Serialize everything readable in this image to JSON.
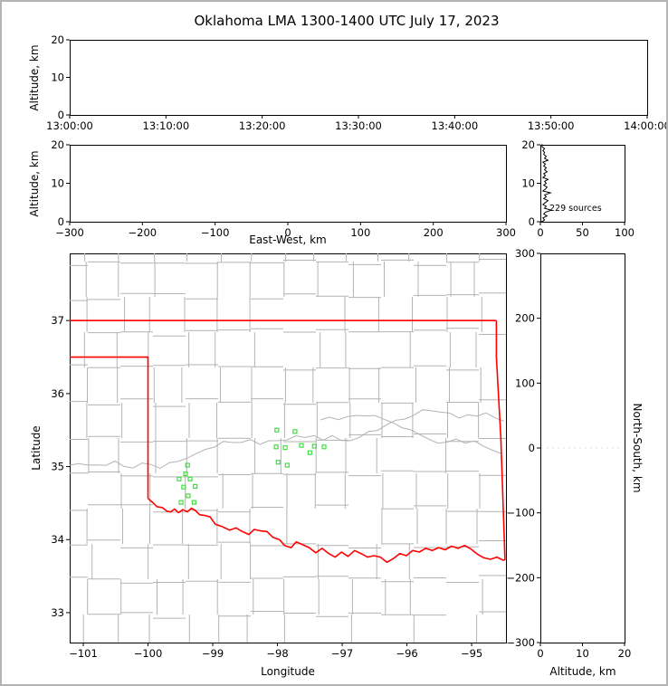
{
  "title": "Oklahoma LMA 1300-1400 UTC July 17, 2023",
  "style": {
    "background": "#ffffff",
    "frame_border": "#b4b4b4",
    "axis_color": "#000000",
    "county_line_color": "#b3b3b3",
    "state_border_color": "#ff0000",
    "source_marker_color": "#3fdf3f",
    "histogram_line_color": "#000000",
    "faint_grid_color": "#dcdcdc"
  },
  "chart_data": [
    {
      "id": "time_height",
      "type": "scatter",
      "xlabel": "",
      "ylabel": "Altitude, km",
      "xlim": [
        0,
        3600
      ],
      "ylim": [
        0,
        20
      ],
      "xtick_values": [
        0,
        600,
        1200,
        1800,
        2400,
        3000,
        3600
      ],
      "xtick_labels": [
        "13:00:00",
        "13:10:00",
        "13:20:00",
        "13:30:00",
        "13:40:00",
        "13:50:00",
        "14:00:00"
      ],
      "ytick_values": [
        0,
        10,
        20
      ],
      "ytick_labels": [
        "0",
        "10",
        "20"
      ],
      "points": []
    },
    {
      "id": "ew_height",
      "type": "scatter",
      "xlabel": "East-West, km",
      "ylabel": "Altitude, km",
      "xlim": [
        -300,
        300
      ],
      "ylim": [
        0,
        20
      ],
      "xtick_values": [
        -300,
        -200,
        -100,
        0,
        100,
        200,
        300
      ],
      "xtick_labels": [
        "−300",
        "−200",
        "−100",
        "0",
        "100",
        "200",
        "300"
      ],
      "ytick_values": [
        0,
        10,
        20
      ],
      "ytick_labels": [
        "0",
        "10",
        "20"
      ],
      "points": []
    },
    {
      "id": "alt_histogram",
      "type": "line",
      "annotation": "229 sources",
      "xlabel": "",
      "ylabel": "",
      "xlim": [
        0,
        100
      ],
      "ylim": [
        0,
        20
      ],
      "xtick_values": [
        0,
        50,
        100
      ],
      "xtick_labels": [
        "0",
        "50",
        "100"
      ],
      "ytick_values": [
        0,
        10,
        20
      ],
      "ytick_labels": [
        "0",
        "10",
        "20"
      ],
      "altitude_bins_km": {
        "start": 0,
        "step": 0.5
      },
      "counts": [
        2,
        5,
        3,
        8,
        4,
        6,
        13,
        5,
        7,
        3,
        6,
        9,
        4,
        7,
        5,
        12,
        3,
        6,
        8,
        4,
        7,
        5,
        9,
        3,
        6,
        4,
        8,
        5,
        7,
        4,
        6,
        3,
        9,
        5,
        7,
        4,
        5,
        3,
        5,
        2,
        2
      ]
    },
    {
      "id": "plan_view",
      "type": "scatter",
      "xlabel": "Longitude",
      "ylabel": "Latitude",
      "xlim": [
        -101.21,
        -94.47
      ],
      "ylim": [
        32.59,
        37.92
      ],
      "xtick_values": [
        -101,
        -100,
        -99,
        -98,
        -97,
        -96,
        -95
      ],
      "xtick_labels": [
        "−101",
        "−100",
        "−99",
        "−98",
        "−97",
        "−96",
        "−95"
      ],
      "ytick_values": [
        33,
        34,
        35,
        36,
        37
      ],
      "ytick_labels": [
        "33",
        "34",
        "35",
        "36",
        "37"
      ],
      "points_lon_lat": [
        [
          -98.01,
          35.5
        ],
        [
          -97.73,
          35.48
        ],
        [
          -98.02,
          35.27
        ],
        [
          -97.88,
          35.26
        ],
        [
          -97.63,
          35.29
        ],
        [
          -97.43,
          35.28
        ],
        [
          -97.28,
          35.27
        ],
        [
          -97.99,
          35.06
        ],
        [
          -97.85,
          35.02
        ],
        [
          -97.5,
          35.19
        ],
        [
          -99.39,
          35.02
        ],
        [
          -99.42,
          34.9
        ],
        [
          -99.52,
          34.83
        ],
        [
          -99.35,
          34.83
        ],
        [
          -99.45,
          34.72
        ],
        [
          -99.27,
          34.73
        ],
        [
          -99.38,
          34.6
        ],
        [
          -99.49,
          34.51
        ],
        [
          -99.29,
          34.51
        ]
      ],
      "state_border_segments": {
        "north": [
          [
            -101.21,
            37.0
          ],
          [
            -94.618,
            37.0
          ]
        ],
        "east": [
          [
            -94.618,
            37.0
          ],
          [
            -94.618,
            36.5
          ],
          [
            -94.55,
            35.4
          ],
          [
            -94.486,
            33.72
          ]
        ],
        "west": [
          [
            -101.21,
            36.5
          ],
          [
            -100.0,
            36.5
          ],
          [
            -100.0,
            34.563
          ]
        ],
        "red_river": [
          [
            -100.0,
            34.563
          ],
          [
            -99.93,
            34.51
          ],
          [
            -99.86,
            34.45
          ],
          [
            -99.78,
            34.44
          ],
          [
            -99.71,
            34.39
          ],
          [
            -99.65,
            34.38
          ],
          [
            -99.59,
            34.42
          ],
          [
            -99.53,
            34.37
          ],
          [
            -99.46,
            34.41
          ],
          [
            -99.39,
            34.38
          ],
          [
            -99.33,
            34.43
          ],
          [
            -99.27,
            34.4
          ],
          [
            -99.2,
            34.34
          ],
          [
            -99.12,
            34.33
          ],
          [
            -99.04,
            34.31
          ],
          [
            -98.96,
            34.21
          ],
          [
            -98.86,
            34.18
          ],
          [
            -98.74,
            34.13
          ],
          [
            -98.64,
            34.16
          ],
          [
            -98.54,
            34.11
          ],
          [
            -98.44,
            34.07
          ],
          [
            -98.36,
            34.14
          ],
          [
            -98.26,
            34.12
          ],
          [
            -98.16,
            34.11
          ],
          [
            -98.07,
            34.03
          ],
          [
            -97.97,
            34.0
          ],
          [
            -97.89,
            33.92
          ],
          [
            -97.79,
            33.89
          ],
          [
            -97.71,
            33.97
          ],
          [
            -97.61,
            33.93
          ],
          [
            -97.51,
            33.89
          ],
          [
            -97.41,
            33.82
          ],
          [
            -97.31,
            33.88
          ],
          [
            -97.21,
            33.81
          ],
          [
            -97.11,
            33.76
          ],
          [
            -97.01,
            33.83
          ],
          [
            -96.91,
            33.77
          ],
          [
            -96.81,
            33.85
          ],
          [
            -96.71,
            33.81
          ],
          [
            -96.61,
            33.76
          ],
          [
            -96.51,
            33.78
          ],
          [
            -96.41,
            33.76
          ],
          [
            -96.31,
            33.69
          ],
          [
            -96.21,
            33.74
          ],
          [
            -96.11,
            33.81
          ],
          [
            -96.01,
            33.78
          ],
          [
            -95.91,
            33.85
          ],
          [
            -95.81,
            33.83
          ],
          [
            -95.71,
            33.88
          ],
          [
            -95.61,
            33.85
          ],
          [
            -95.51,
            33.89
          ],
          [
            -95.41,
            33.86
          ],
          [
            -95.31,
            33.91
          ],
          [
            -95.21,
            33.88
          ],
          [
            -95.11,
            33.92
          ],
          [
            -95.01,
            33.87
          ],
          [
            -94.91,
            33.8
          ],
          [
            -94.81,
            33.75
          ],
          [
            -94.71,
            33.73
          ],
          [
            -94.61,
            33.76
          ],
          [
            -94.52,
            33.72
          ],
          [
            -94.486,
            33.72
          ]
        ]
      }
    },
    {
      "id": "ns_height",
      "type": "scatter",
      "xlabel": "Altitude, km",
      "ylabel": "North-South, km",
      "xlim": [
        0,
        20
      ],
      "ylim": [
        -300,
        300
      ],
      "xtick_values": [
        0,
        10,
        20
      ],
      "xtick_labels": [
        "0",
        "10",
        "20"
      ],
      "ytick_values": [
        -300,
        -200,
        -100,
        0,
        100,
        200,
        300
      ],
      "ytick_labels": [
        "−300",
        "−200",
        "−100",
        "0",
        "100",
        "200",
        "300"
      ],
      "points": []
    }
  ]
}
